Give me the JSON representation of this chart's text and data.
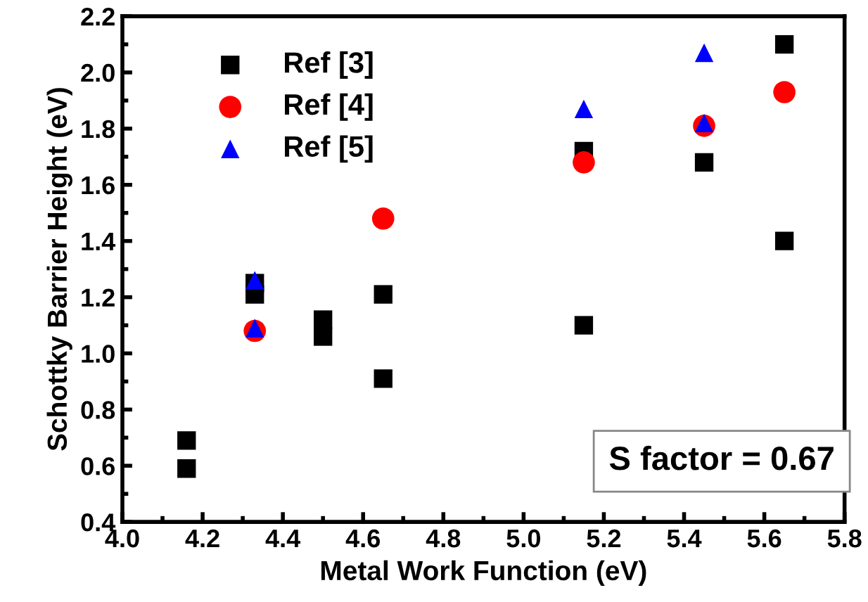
{
  "chart_data": {
    "type": "scatter",
    "xlabel": "Metal Work Function (eV)",
    "ylabel": "Schottky Barrier Height (eV)",
    "xlim": [
      4.0,
      5.8
    ],
    "ylim": [
      0.4,
      2.2
    ],
    "xticks": [
      {
        "value": 4.0,
        "label": "4.0"
      },
      4.2,
      4.4,
      4.6,
      4.8,
      {
        "value": 5.0,
        "label": "5.0"
      },
      5.2,
      5.4,
      5.6,
      5.8
    ],
    "yticks": [
      0.4,
      0.6,
      0.8,
      {
        "value": 1.0,
        "label": "1.0"
      },
      1.2,
      1.4,
      1.6,
      1.8,
      {
        "value": 2.0,
        "label": "2.0"
      },
      2.2
    ],
    "grid": false,
    "legend": "top left",
    "annotations": [
      "S factor = 0.67"
    ],
    "series": [
      {
        "name": "Ref [3]",
        "color": "#000000",
        "marker": "square",
        "x": [
          4.16,
          4.16,
          4.33,
          4.33,
          4.5,
          4.5,
          4.65,
          4.65,
          5.15,
          5.15,
          5.45,
          5.65,
          5.65
        ],
        "values": [
          0.69,
          0.59,
          1.21,
          1.25,
          1.12,
          1.06,
          1.21,
          0.91,
          1.72,
          1.1,
          1.68,
          2.1,
          1.4
        ]
      },
      {
        "name": "Ref [4]",
        "color": "#ff0000",
        "marker": "circle",
        "x": [
          4.33,
          4.65,
          5.15,
          5.45,
          5.65
        ],
        "values": [
          1.08,
          1.48,
          1.68,
          1.81,
          1.93
        ]
      },
      {
        "name": "Ref [5]",
        "color": "#0000ff",
        "marker": "triangle",
        "x": [
          4.33,
          4.33,
          5.15,
          5.45,
          5.45
        ],
        "values": [
          1.26,
          1.09,
          1.87,
          2.07,
          1.82
        ]
      }
    ]
  }
}
